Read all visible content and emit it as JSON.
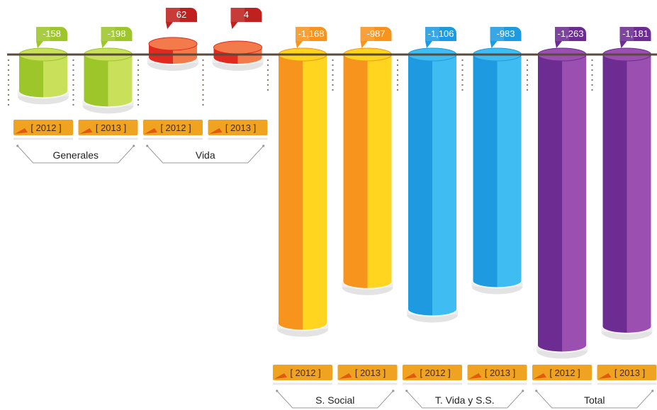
{
  "chart_data": {
    "type": "bar",
    "title": "",
    "xlabel": "",
    "ylabel": "",
    "groups": [
      {
        "name": "Generales",
        "color": "#9cc62a",
        "light": "#c8e05a",
        "bars": [
          {
            "year": "[ 2012 ]",
            "value": -158,
            "label": "-158"
          },
          {
            "year": "[ 2013 ]",
            "value": -198,
            "label": "-198"
          }
        ]
      },
      {
        "name": "Vida",
        "color": "#e02a20",
        "light": "#f37a4a",
        "bars": [
          {
            "year": "[ 2012 ]",
            "value": 62,
            "label": "62"
          },
          {
            "year": "[ 2013 ]",
            "value": 4,
            "label": "4"
          }
        ]
      },
      {
        "name": "S. Social",
        "color": "#f7941d",
        "light": "#ffd520",
        "bars": [
          {
            "year": "[ 2012 ]",
            "value": -1168,
            "label": "-1,168"
          },
          {
            "year": "[ 2013 ]",
            "value": -987,
            "label": "-987"
          }
        ]
      },
      {
        "name": "T. Vida y S.S.",
        "color": "#1e9be0",
        "light": "#3fbdf2",
        "bars": [
          {
            "year": "[ 2012 ]",
            "value": -1106,
            "label": "-1,106"
          },
          {
            "year": "[ 2013 ]",
            "value": -983,
            "label": "-983"
          }
        ]
      },
      {
        "name": "Total",
        "color": "#6c2c91",
        "light": "#9b4fb0",
        "bars": [
          {
            "year": "[ 2012 ]",
            "value": -1263,
            "label": "-1,263"
          },
          {
            "year": "[ 2013 ]",
            "value": -1181,
            "label": "-1,181"
          }
        ]
      }
    ],
    "baseline_value": 0,
    "legend": "none",
    "grid": false
  },
  "colors": {
    "baseline": "#5a4a3e",
    "year_tag": "#f0a321",
    "year_tag_corner": "#e05a10",
    "dots": "#8a7a70",
    "bracket": "#9a9a9a"
  }
}
